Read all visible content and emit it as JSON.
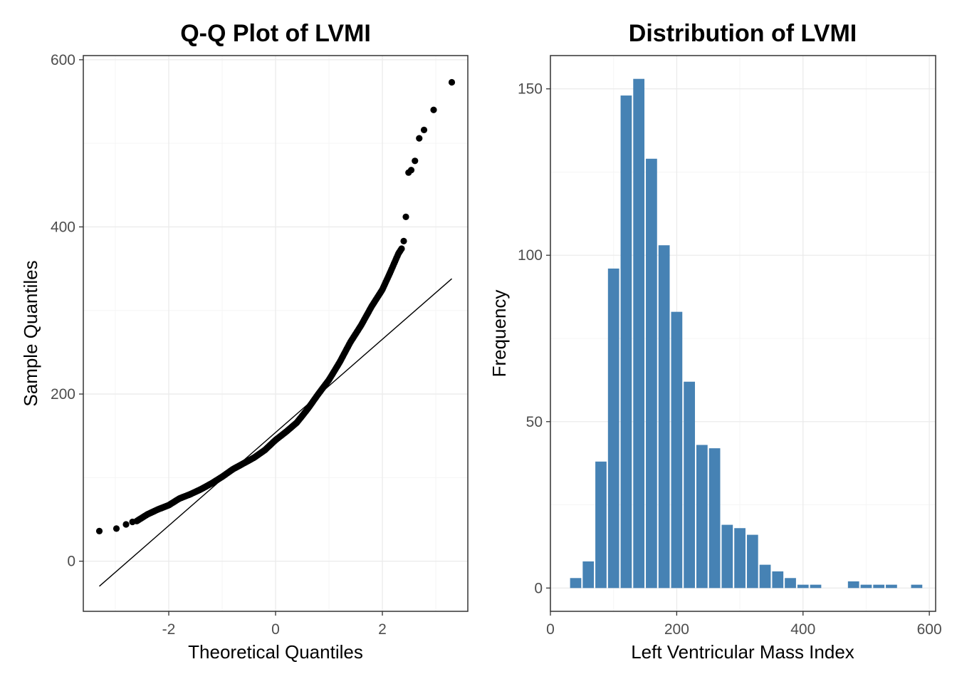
{
  "colors": {
    "bar_fill": "#4682b4",
    "grid_major": "#ebebeb",
    "grid_minor": "#f5f5f5",
    "panel_border": "#333333",
    "point": "#000000",
    "line": "#000000"
  },
  "chart_data": [
    {
      "type": "scatter",
      "title": "Q-Q Plot of LVMI",
      "xlabel": "Theoretical Quantiles",
      "ylabel": "Sample Quantiles",
      "xlim": [
        -3.6,
        3.6
      ],
      "ylim": [
        -60,
        605
      ],
      "xticks": [
        -2,
        0,
        2
      ],
      "xtick_labels": [
        "-2",
        "0",
        "2"
      ],
      "yticks": [
        0,
        200,
        400,
        600
      ],
      "ytick_labels": [
        "0",
        "200",
        "400",
        "600"
      ],
      "grid": true,
      "reference_line": {
        "x": [
          -3.3,
          3.3
        ],
        "y": [
          -30,
          338
        ]
      },
      "points": [
        [
          -3.3,
          36
        ],
        [
          -2.98,
          39
        ],
        [
          -2.8,
          44
        ],
        [
          -2.68,
          47
        ],
        [
          2.4,
          383
        ],
        [
          2.44,
          412
        ],
        [
          2.49,
          465
        ],
        [
          2.54,
          468
        ],
        [
          2.61,
          479
        ],
        [
          2.69,
          506
        ],
        [
          2.78,
          516
        ],
        [
          2.96,
          540
        ],
        [
          3.3,
          573
        ]
      ],
      "body_curve": [
        [
          -2.6,
          48
        ],
        [
          -2.4,
          56
        ],
        [
          -2.2,
          62
        ],
        [
          -2.0,
          67
        ],
        [
          -1.8,
          75
        ],
        [
          -1.6,
          80
        ],
        [
          -1.4,
          86
        ],
        [
          -1.2,
          93
        ],
        [
          -1.0,
          101
        ],
        [
          -0.8,
          110
        ],
        [
          -0.6,
          117
        ],
        [
          -0.4,
          124
        ],
        [
          -0.2,
          133
        ],
        [
          0.0,
          145
        ],
        [
          0.2,
          155
        ],
        [
          0.4,
          166
        ],
        [
          0.6,
          182
        ],
        [
          0.8,
          200
        ],
        [
          1.0,
          217
        ],
        [
          1.2,
          238
        ],
        [
          1.4,
          262
        ],
        [
          1.6,
          282
        ],
        [
          1.8,
          305
        ],
        [
          2.0,
          325
        ],
        [
          2.15,
          346
        ],
        [
          2.3,
          368
        ],
        [
          2.36,
          374
        ]
      ]
    },
    {
      "type": "bar",
      "title": "Distribution of LVMI",
      "xlabel": "Left Ventricular Mass Index",
      "ylabel": "Frequency",
      "xlim": [
        0,
        610
      ],
      "ylim": [
        -7,
        160
      ],
      "xticks": [
        0,
        200,
        400,
        600
      ],
      "xtick_labels": [
        "0",
        "200",
        "400",
        "600"
      ],
      "yticks": [
        0,
        50,
        100,
        150
      ],
      "ytick_labels": [
        "0",
        "50",
        "100",
        "150"
      ],
      "grid": true,
      "bin_width": 20,
      "bin_centers": [
        40,
        60,
        80,
        100,
        120,
        140,
        160,
        180,
        200,
        220,
        240,
        260,
        280,
        300,
        320,
        340,
        360,
        380,
        400,
        420,
        440,
        460,
        480,
        500,
        520,
        540,
        560,
        580
      ],
      "values": [
        3,
        8,
        38,
        96,
        148,
        153,
        129,
        103,
        83,
        62,
        43,
        42,
        19,
        18,
        16,
        7,
        5,
        3,
        1,
        1,
        0,
        0,
        2,
        1,
        1,
        1,
        0,
        1
      ]
    }
  ]
}
